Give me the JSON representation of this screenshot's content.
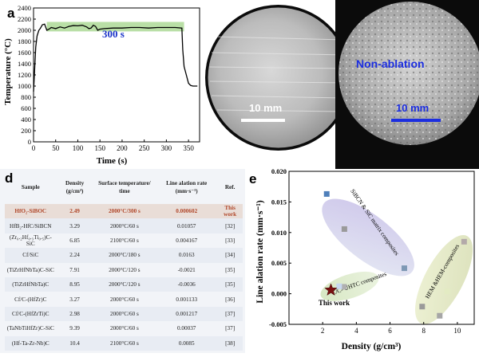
{
  "panel_labels": {
    "a": "a",
    "d": "d",
    "e": "e"
  },
  "micrographs": {
    "left_scale": "10 mm",
    "right_scale": "10 mm",
    "right_annotation": "Non-ablation"
  },
  "table": {
    "headers": [
      "Sample",
      "Density (g/cm³)",
      "Surface temperature/ time",
      "Line alation rate (mm·s⁻¹)",
      "Ref."
    ],
    "rows": [
      [
        "HfO₂-SiBOC",
        "2.49",
        "2000°C/300 s",
        "0.000602",
        "This work"
      ],
      [
        "HfB₂-HfC/SiBCN",
        "3.29",
        "2000°C/60 s",
        "0.01057",
        "[32]"
      ],
      [
        "(Zr₀.₂Hf₀.₃Ti₀.₅)C-SiC",
        "6.85",
        "2100°C/60 s",
        "0.004167",
        "[33]"
      ],
      [
        "Cf/SiC",
        "2.24",
        "2000°C/180 s",
        "0.0163",
        "[34]"
      ],
      [
        "(TiZrHfNbTa)C-SiC",
        "7.91",
        "2000°C/120 s",
        "-0.0021",
        "[35]"
      ],
      [
        "(TiZrHfNbTa)C",
        "8.95",
        "2000°C/120 s",
        "-0.0036",
        "[35]"
      ],
      [
        "Cf/C-(HfZr)C",
        "3.27",
        "2000°C/60 s",
        "0.001133",
        "[36]"
      ],
      [
        "Cf/C-(HfZrTi)C",
        "2.98",
        "2000°C/60 s",
        "0.001217",
        "[37]"
      ],
      [
        "(TaNbTiHfZr)C-SiC",
        "9.39",
        "2000°C/60 s",
        "0.00037",
        "[37]"
      ],
      [
        "(Hf-Ta-Zr-Nb)C",
        "10.4",
        "2100°C/60 s",
        "0.0085",
        "[38]"
      ]
    ]
  },
  "chart_data": [
    {
      "type": "line",
      "xlabel": "Time (s)",
      "ylabel": "Temperature (°C)",
      "xlim": [
        0,
        375
      ],
      "ylim": [
        0,
        2400
      ],
      "xticks": [
        0,
        50,
        100,
        150,
        200,
        250,
        300,
        350
      ],
      "yticks": [
        0,
        200,
        400,
        600,
        800,
        1000,
        1200,
        1400,
        1600,
        1800,
        2000,
        2200,
        2400
      ],
      "annotation": "300 s",
      "band": {
        "x": [
          30,
          340
        ],
        "y": [
          1980,
          2150
        ],
        "color": "#b9dfa6"
      },
      "series": [
        {
          "color": "#000000",
          "x": [
            0,
            5,
            8,
            12,
            15,
            20,
            25,
            30,
            35,
            40,
            50,
            60,
            70,
            80,
            90,
            100,
            110,
            120,
            125,
            130,
            135,
            140,
            145,
            150,
            160,
            180,
            200,
            220,
            240,
            260,
            280,
            300,
            320,
            335,
            337,
            340,
            345,
            350,
            355,
            360,
            365,
            370
          ],
          "y": [
            900,
            1700,
            1900,
            2000,
            2030,
            2100,
            2110,
            2000,
            2020,
            2050,
            2030,
            2060,
            2040,
            2070,
            2085,
            2080,
            2090,
            2060,
            2030,
            2040,
            2090,
            2070,
            2000,
            2020,
            2030,
            2040,
            2040,
            2050,
            2050,
            2040,
            2050,
            2050,
            2050,
            2040,
            1650,
            1350,
            1200,
            1050,
            1010,
            1000,
            1000,
            1000
          ]
        }
      ]
    },
    {
      "type": "scatter",
      "xlabel": "Density (g/cm³)",
      "ylabel": "Line alation rate (mm·s⁻¹)",
      "xlim": [
        0,
        11
      ],
      "ylim": [
        -0.005,
        0.02
      ],
      "xticks": [
        2,
        4,
        6,
        8,
        10
      ],
      "yticks": [
        -0.005,
        0.0,
        0.005,
        0.01,
        0.015,
        0.02
      ],
      "group_labels": [
        "SiBCN & SiC matrix composites",
        "HEM &HEM-composites",
        "C/C- UHTC composites"
      ],
      "highlight": {
        "label": "This work",
        "x": 2.49,
        "y": 0.000602,
        "color": "#7a1010"
      },
      "series": [
        {
          "points": [
            {
              "x": 2.24,
              "y": 0.0163,
              "color": "#4f7fba"
            },
            {
              "x": 3.29,
              "y": 0.01057,
              "color": "#9a9a9a"
            },
            {
              "x": 6.85,
              "y": 0.004167,
              "color": "#7e98b4"
            },
            {
              "x": 3.27,
              "y": 0.001133,
              "color": "#b0b0b0"
            },
            {
              "x": 2.98,
              "y": 0.001217,
              "color": "#c8d8f0"
            },
            {
              "x": 7.91,
              "y": -0.0021,
              "color": "#9a9a9a"
            },
            {
              "x": 8.95,
              "y": -0.0036,
              "color": "#a6a6a6"
            },
            {
              "x": 9.39,
              "y": 0.00037,
              "color": "#e3ebc3"
            },
            {
              "x": 10.4,
              "y": 0.0085,
              "color": "#b3a9a9"
            }
          ]
        }
      ]
    }
  ]
}
